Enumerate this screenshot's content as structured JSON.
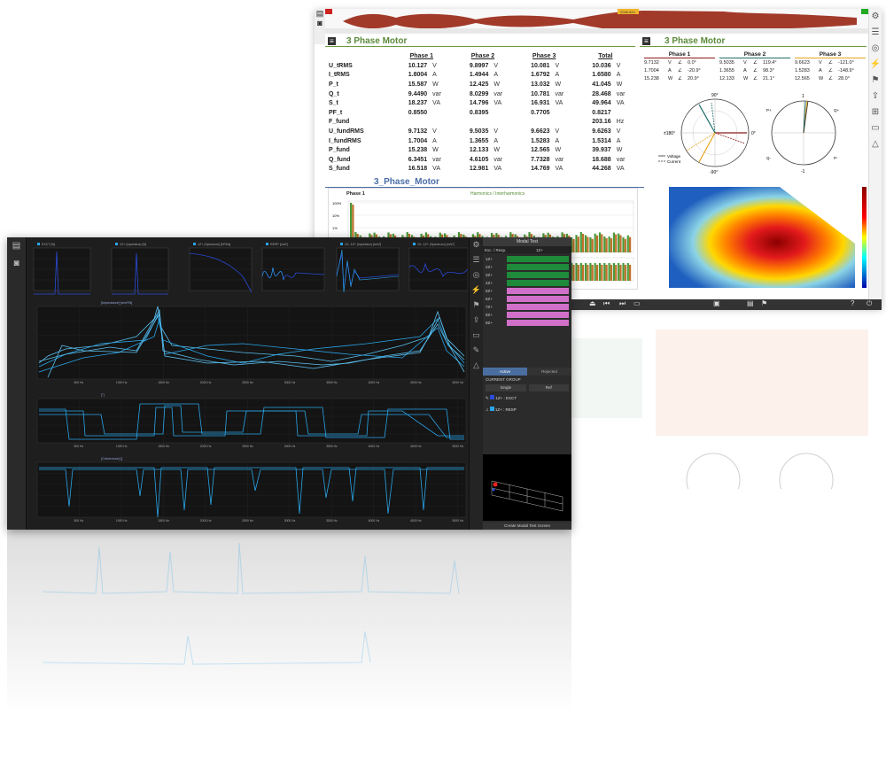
{
  "back_window": {
    "overview": {
      "time_label": "2046.524"
    },
    "section1": {
      "title": "3 Phase Motor"
    },
    "table": {
      "headers": [
        "Phase 1",
        "Phase 2",
        "Phase 3",
        "Total"
      ],
      "rows": [
        {
          "name": "U_tRMS",
          "p1": "10.127",
          "u1": "V",
          "p2": "9.8997",
          "u2": "V",
          "p3": "10.081",
          "u3": "V",
          "t": "10.036",
          "ut": "V"
        },
        {
          "name": "I_tRMS",
          "p1": "1.8004",
          "u1": "A",
          "p2": "1.4944",
          "u2": "A",
          "p3": "1.6792",
          "u3": "A",
          "t": "1.6580",
          "ut": "A"
        },
        {
          "name": "P_t",
          "p1": "15.587",
          "u1": "W",
          "p2": "12.425",
          "u2": "W",
          "p3": "13.032",
          "u3": "W",
          "t": "41.045",
          "ut": "W"
        },
        {
          "name": "Q_t",
          "p1": "9.4490",
          "u1": "var",
          "p2": "8.0299",
          "u2": "var",
          "p3": "10.781",
          "u3": "var",
          "t": "28.468",
          "ut": "var"
        },
        {
          "name": "S_t",
          "p1": "18.237",
          "u1": "VA",
          "p2": "14.796",
          "u2": "VA",
          "p3": "16.931",
          "u3": "VA",
          "t": "49.964",
          "ut": "VA"
        },
        {
          "name": "PF_t",
          "p1": "0.8550",
          "u1": "",
          "p2": "0.8395",
          "u2": "",
          "p3": "0.7705",
          "u3": "",
          "t": "0.8217",
          "ut": ""
        },
        {
          "name": "F_fund",
          "p1": "",
          "u1": "",
          "p2": "",
          "u2": "",
          "p3": "",
          "u3": "",
          "t": "203.16",
          "ut": "Hz"
        },
        {
          "name": "U_fundRMS",
          "p1": "9.7132",
          "u1": "V",
          "p2": "9.5035",
          "u2": "V",
          "p3": "9.6623",
          "u3": "V",
          "t": "9.6263",
          "ut": "V"
        },
        {
          "name": "I_fundRMS",
          "p1": "1.7004",
          "u1": "A",
          "p2": "1.3655",
          "u2": "A",
          "p3": "1.5283",
          "u3": "A",
          "t": "1.5314",
          "ut": "A"
        },
        {
          "name": "P_fund",
          "p1": "15.238",
          "u1": "W",
          "p2": "12.133",
          "u2": "W",
          "p3": "12.565",
          "u3": "W",
          "t": "39.937",
          "ut": "W"
        },
        {
          "name": "Q_fund",
          "p1": "6.3451",
          "u1": "var",
          "p2": "4.6105",
          "u2": "var",
          "p3": "7.7328",
          "u3": "var",
          "t": "18.688",
          "ut": "var"
        },
        {
          "name": "S_fund",
          "p1": "16.518",
          "u1": "VA",
          "p2": "12.981",
          "u2": "VA",
          "p3": "14.769",
          "u3": "VA",
          "t": "44.268",
          "ut": "VA"
        }
      ]
    },
    "section2": {
      "title": "3 Phase Motor"
    },
    "phasors": [
      {
        "name": "Phase 1",
        "color": "#8b1a1a",
        "rows": [
          [
            "9.7132",
            "V",
            "∠",
            "0.0°"
          ],
          [
            "1.7004",
            "A",
            "∠",
            "-20.9°"
          ],
          [
            "15.238",
            "W",
            "∠",
            "20.9°"
          ]
        ]
      },
      {
        "name": "Phase 2",
        "color": "#1f6b6b",
        "rows": [
          [
            "9.5035",
            "V",
            "∠",
            "119.4°"
          ],
          [
            "1.3655",
            "A",
            "∠",
            "98.3°"
          ],
          [
            "12.133",
            "W",
            "∠",
            "21.1°"
          ]
        ]
      },
      {
        "name": "Phase 3",
        "color": "#e5a422",
        "rows": [
          [
            "9.6623",
            "V",
            "∠",
            "-121.0°"
          ],
          [
            "1.5283",
            "A",
            "∠",
            "-148.9°"
          ],
          [
            "12.565",
            "W",
            "∠",
            "28.0°"
          ]
        ]
      }
    ],
    "polar": {
      "top": "90°",
      "left": "±180°",
      "right": "0°",
      "bottom": "-90°",
      "legend": [
        "Voltage",
        "Current"
      ]
    },
    "polar2": {
      "top": "1",
      "bottom": "-1",
      "l1": "P+",
      "r1": "Q+",
      "l2": "Q-",
      "r2": "P-"
    },
    "section3": {
      "title": "3_Phase_Motor"
    },
    "harmonics": {
      "label": "Phase 1",
      "title": "Harmonics / Interharmonics",
      "yticks": [
        "100%",
        "10%",
        "1%",
        "0.1%"
      ]
    }
  },
  "front_window": {
    "top_charts": [
      {
        "legend": "EXCT [N]"
      },
      {
        "legend": "1Z+ (Inpedanz) [N]"
      },
      {
        "legend": "1Z+ (Spectrum) [N²/Hz]"
      },
      {
        "legend": "RESP [m/s²]"
      },
      {
        "legend": "1X:-1Z+ (Inpedanz) [m/s²]"
      },
      {
        "legend": "1X:-1Z+ (Spectrum) [m/s²]"
      }
    ],
    "big_charts": [
      {
        "legend": "[Impedance] [m/s²/N]",
        "xticks": [
          "500 Hz",
          "1000 Hz",
          "1500 Hz",
          "2000 Hz",
          "2500 Hz",
          "3000 Hz",
          "3500 Hz",
          "4000 Hz",
          "4500 Hz",
          "5000 Hz"
        ]
      },
      {
        "legend": "[°]",
        "xticks": [
          "500 Hz",
          "1000 Hz",
          "1500 Hz",
          "2000 Hz",
          "2500 Hz",
          "3000 Hz",
          "3500 Hz",
          "4000 Hz",
          "4500 Hz",
          "5000 Hz"
        ]
      },
      {
        "legend": "(Coherence) []",
        "xticks": [
          "500 Hz",
          "1000 Hz",
          "1500 Hz",
          "2000 Hz",
          "2500 Hz",
          "3000 Hz",
          "3500 Hz",
          "4000 Hz",
          "4500 Hz",
          "5000 Hz"
        ]
      }
    ],
    "modal": {
      "title": "Modal Test",
      "cols": [
        "Exc. / Resp.",
        "1Z+"
      ],
      "rows": [
        "1Z+",
        "2Z+",
        "3Z+",
        "4Z+",
        "5Z+",
        "6Z+",
        "7Z+",
        "8Z+",
        "9Z+"
      ],
      "tabs": [
        "Active",
        "Rejected"
      ],
      "current_group": "CURRENT GROUP",
      "btns": [
        "Single",
        "Ref"
      ],
      "exct": "1Z+  :  EXCT",
      "resp": "1Z+  :  RESP",
      "create": "Create Modal Test Screen"
    }
  }
}
